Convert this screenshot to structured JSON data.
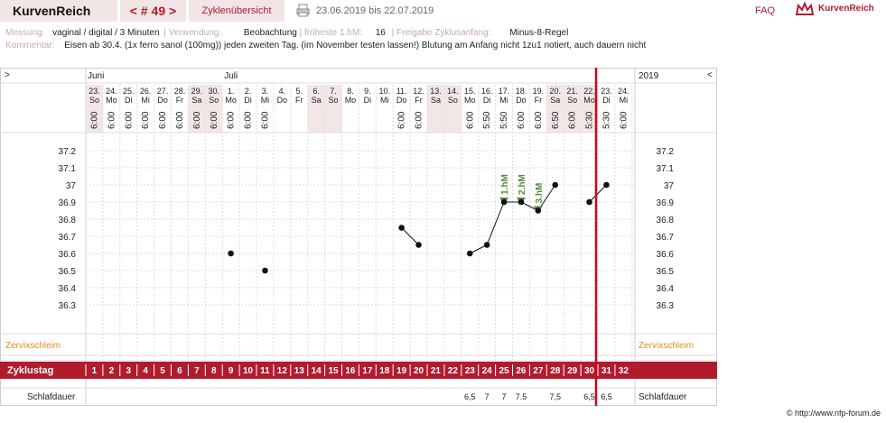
{
  "header": {
    "app_title": "KurvenReich",
    "cycle_nav": "< # 49 >",
    "overview_link": "Zyklenübersicht",
    "date_range": "23.06.2019 bis 22.07.2019",
    "faq": "FAQ",
    "logo_text": "KurvenReich"
  },
  "info": {
    "messung_label": "Messung:",
    "messung_value": "vaginal / digital / 3 Minuten",
    "verwendung_label": "Verwendung:",
    "verwendung_value": "Beobachtung",
    "hm_label": "früheste 1.hM:",
    "hm_value": "16",
    "freigabe_label": "Freigabe Zyklusanfang:",
    "freigabe_value": "Minus-8-Regel",
    "kommentar_label": "Kommentar:",
    "kommentar_value": "Eisen ab 30.4. (1x ferro sanol (100mg)) jeden zweiten Tag. (im November testen lassen!) Blutung am Anfang nicht 1zu1 notiert, auch dauern nicht"
  },
  "chart_data": {
    "type": "line",
    "nav_left": ">",
    "nav_right": "<",
    "year": "2019",
    "months": [
      {
        "label": "Juni",
        "col": 0
      },
      {
        "label": "Juli",
        "col": 8
      }
    ],
    "days": [
      "23.",
      "24.",
      "25.",
      "26.",
      "27.",
      "28.",
      "29.",
      "30.",
      "1.",
      "2.",
      "3.",
      "4.",
      "5.",
      "6.",
      "7.",
      "8.",
      "9.",
      "10.",
      "11.",
      "12.",
      "13.",
      "14.",
      "15.",
      "16.",
      "17.",
      "18.",
      "19.",
      "20.",
      "21.",
      "22.",
      "23.",
      "24."
    ],
    "weekdays": [
      "So",
      "Mo",
      "Di",
      "Mi",
      "Do",
      "Fr",
      "Sa",
      "So",
      "Mo",
      "Di",
      "Mi",
      "Do",
      "Fr",
      "Sa",
      "So",
      "Mo",
      "Di",
      "Mi",
      "Do",
      "Fr",
      "Sa",
      "So",
      "Mo",
      "Di",
      "Mi",
      "Do",
      "Fr",
      "Sa",
      "So",
      "Mo",
      "Di",
      "Mi"
    ],
    "weekend_cols": [
      0,
      6,
      7,
      13,
      14,
      20,
      21,
      27,
      28,
      29
    ],
    "times": [
      "6:00",
      "6:00",
      "6:00",
      "6:00",
      "6:00",
      "6:00",
      "6:00",
      "6:00",
      "6:00",
      "6:00",
      "6:00",
      "",
      "",
      "",
      "",
      "",
      "",
      "",
      "6:00",
      "6:00",
      "",
      "",
      "6:00",
      "5:50",
      "5:50",
      "6:00",
      "6:00",
      "6:50",
      "6:00",
      "5:30",
      "5:30",
      "6:00"
    ],
    "y_ticks": [
      "37.2",
      "37.1",
      "37",
      "36.9",
      "36.8",
      "36.7",
      "36.6",
      "36.5",
      "36.4",
      "36.3"
    ],
    "ylim": [
      36.3,
      37.2
    ],
    "temperatures": [
      {
        "day": 9,
        "value": 36.6
      },
      {
        "day": 11,
        "value": 36.5
      },
      {
        "day": 19,
        "value": 36.75
      },
      {
        "day": 20,
        "value": 36.65
      },
      {
        "day": 23,
        "value": 36.6
      },
      {
        "day": 24,
        "value": 36.65
      },
      {
        "day": 25,
        "value": 36.9
      },
      {
        "day": 26,
        "value": 36.9
      },
      {
        "day": 27,
        "value": 36.85
      },
      {
        "day": 28,
        "value": 37.0
      },
      {
        "day": 30,
        "value": 36.9
      },
      {
        "day": 31,
        "value": 37.0
      }
    ],
    "segments": [
      [
        19,
        20
      ],
      [
        23,
        24
      ],
      [
        24,
        25
      ],
      [
        25,
        26
      ],
      [
        26,
        27
      ],
      [
        27,
        28
      ],
      [
        30,
        31
      ]
    ],
    "hm_markers": [
      {
        "day": 25,
        "label": "1.hM",
        "value": 36.9
      },
      {
        "day": 26,
        "label": "2.hM",
        "value": 36.9
      },
      {
        "day": 27,
        "label": "3.hM",
        "value": 36.85
      }
    ],
    "cursor_day": 31,
    "zervix_label": "Zervixschleim",
    "zyklustag_label": "Zyklustag",
    "zyklustage": [
      "1",
      "2",
      "3",
      "4",
      "5",
      "6",
      "7",
      "8",
      "9",
      "10",
      "11",
      "12",
      "13",
      "14",
      "15",
      "16",
      "17",
      "18",
      "19",
      "20",
      "21",
      "22",
      "23",
      "24",
      "25",
      "26",
      "27",
      "28",
      "29",
      "30",
      "31",
      "32"
    ],
    "schlaf_label": "Schlafdauer",
    "schlaf": [
      "",
      "",
      "",
      "",
      "",
      "",
      "",
      "",
      "",
      "",
      "",
      "",
      "",
      "",
      "",
      "",
      "",
      "",
      "",
      "",
      "",
      "",
      "6,5",
      "7",
      "7",
      "7.5",
      "",
      "7,5",
      "",
      "6,5",
      "6,5",
      ""
    ]
  },
  "footer": "© http://www.nfp-forum.de",
  "colors": {
    "brand": "#b01c2e",
    "weekend": "#f3e6e6",
    "grid": "#dddddd",
    "green": "#5a8a3a",
    "zervix": "#e08a1e"
  }
}
